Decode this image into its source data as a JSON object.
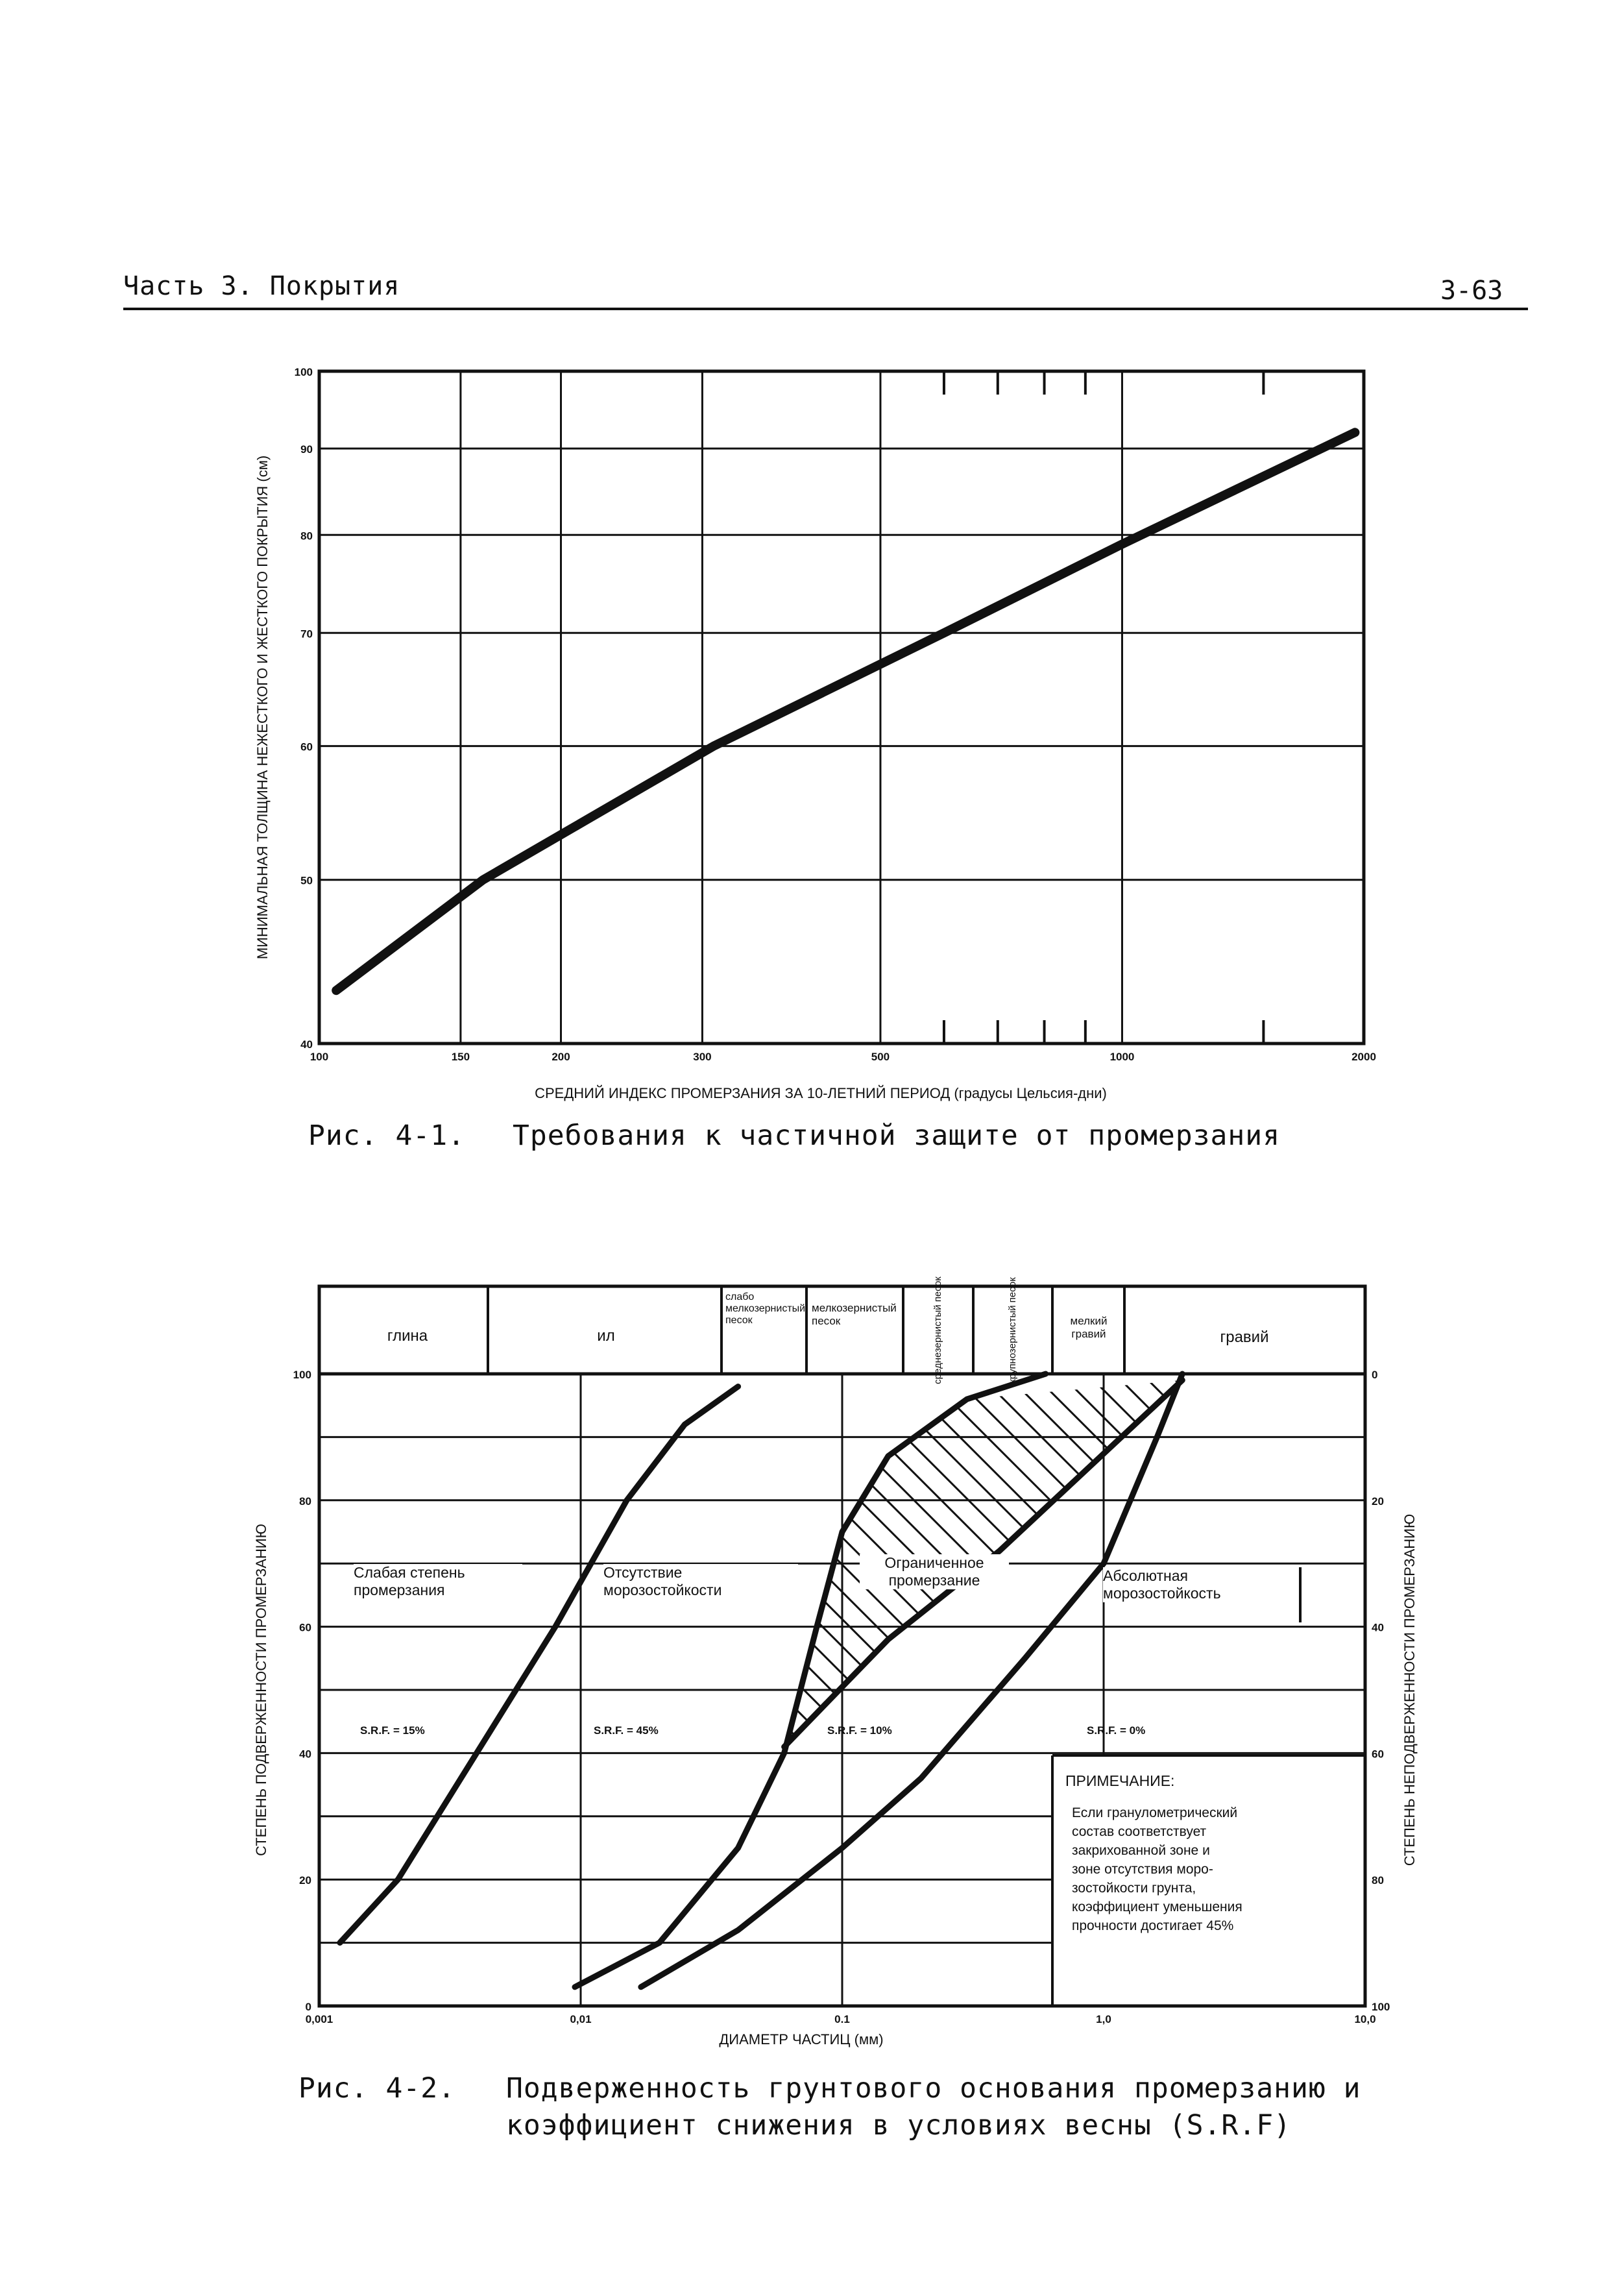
{
  "header": {
    "section_title": "Часть 3. Покрытия",
    "page_number": "3-63"
  },
  "figure1": {
    "caption_number": "Рис. 4-1.",
    "caption_text": "Требования к частичной защите от промерзания"
  },
  "figure2": {
    "caption_number": "Рис. 4-2.",
    "caption_text_line1": "Подверженность грунтового основания промерзанию и",
    "caption_text_line2": "коэффициент снижения в условиях весны (S.R.F)"
  },
  "chart_data": [
    {
      "type": "line",
      "xscale": "log",
      "yscale": "log",
      "xlim": [
        100,
        2000
      ],
      "ylim": [
        40,
        100
      ],
      "x_ticks": [
        "100",
        "150",
        "200",
        "300",
        "500",
        "1000",
        "2000"
      ],
      "y_ticks": [
        "40",
        "50",
        "60",
        "70",
        "80",
        "90",
        "100"
      ],
      "xlabel": "СРЕДНИЙ ИНДЕКС ПРОМЕРЗАНИЯ ЗА 10-ЛЕТНИЙ ПЕРИОД (градусы Цельсия-дни)",
      "ylabel": "МИНИМАЛЬНАЯ ТОЛЩИНА НЕЖЕСТКОГО И ЖЕСТКОГО ПОКРЫТИЯ (см)",
      "grid": true,
      "series": [
        {
          "x": [
            105,
            160,
            310,
            600,
            1000,
            1950
          ],
          "y": [
            43,
            50,
            60,
            70,
            79,
            92
          ]
        }
      ]
    },
    {
      "type": "line",
      "xscale": "log",
      "xlim": [
        0.001,
        10
      ],
      "ylim": [
        0,
        100
      ],
      "x_ticks": [
        "0,001",
        "0,01",
        "0.1",
        "1,0",
        "10,0"
      ],
      "y_ticks": [
        "0",
        "20",
        "40",
        "60",
        "80",
        "100"
      ],
      "y2_ticks": [
        "100",
        "80",
        "60",
        "40",
        "20",
        "0"
      ],
      "xlabel": "ДИАМЕТР ЧАСТИЦ (мм)",
      "ylabel": "СТЕПЕНЬ ПОДВЕРЖЕННОСТИ ПРОМЕРЗАНИЮ",
      "y2label": "СТЕПЕНЬ НЕПОДВЕРЖЕННОСТИ ПРОМЕРЗАНИЮ",
      "grid": true,
      "soil_classes": [
        "глина",
        "ил",
        "слабо мелкозернистый песок",
        "мелкозернистый песок",
        "среднезернистый песок",
        "крупнозернистый песок",
        "мелкий гравий",
        "гравий"
      ],
      "zones": [
        {
          "label": "Слабая степень промерзания",
          "srf": "S.R.F. = 15%"
        },
        {
          "label": "Отсутствие морозостойкости",
          "srf": "S.R.F. = 45%"
        },
        {
          "label": "Ограниченное промерзание",
          "srf": "S.R.F. = 10%"
        },
        {
          "label": "Абсолютная морозостойкость",
          "srf": "S.R.F. = 0%"
        }
      ],
      "note_title": "ПРИМЕЧАНИЕ:",
      "note_lines": [
        "Если гранулометрический",
        "состав соответствует",
        "закрихованной зоне и",
        "зоне отсутствия моро-",
        "зостойкости грунта,",
        "коэффициент уменьшения",
        "прочности достигает 45%"
      ],
      "series": [
        {
          "x": [
            0.0012,
            0.002,
            0.004,
            0.008,
            0.015,
            0.025,
            0.04
          ],
          "y": [
            10,
            20,
            40,
            60,
            80,
            92,
            98
          ]
        },
        {
          "x": [
            0.0095,
            0.02,
            0.04,
            0.06,
            0.08,
            0.1,
            0.15,
            0.3,
            0.6
          ],
          "y": [
            3,
            10,
            25,
            40,
            60,
            75,
            87,
            96,
            100
          ]
        },
        {
          "x": [
            0.017,
            0.04,
            0.1,
            0.2,
            0.5,
            1,
            1.6,
            2
          ],
          "y": [
            3,
            12,
            25,
            36,
            55,
            70,
            90,
            100
          ]
        },
        {
          "x": [
            0.06,
            0.15,
            0.4,
            2
          ],
          "y": [
            41,
            58,
            72,
            99
          ]
        }
      ]
    }
  ]
}
